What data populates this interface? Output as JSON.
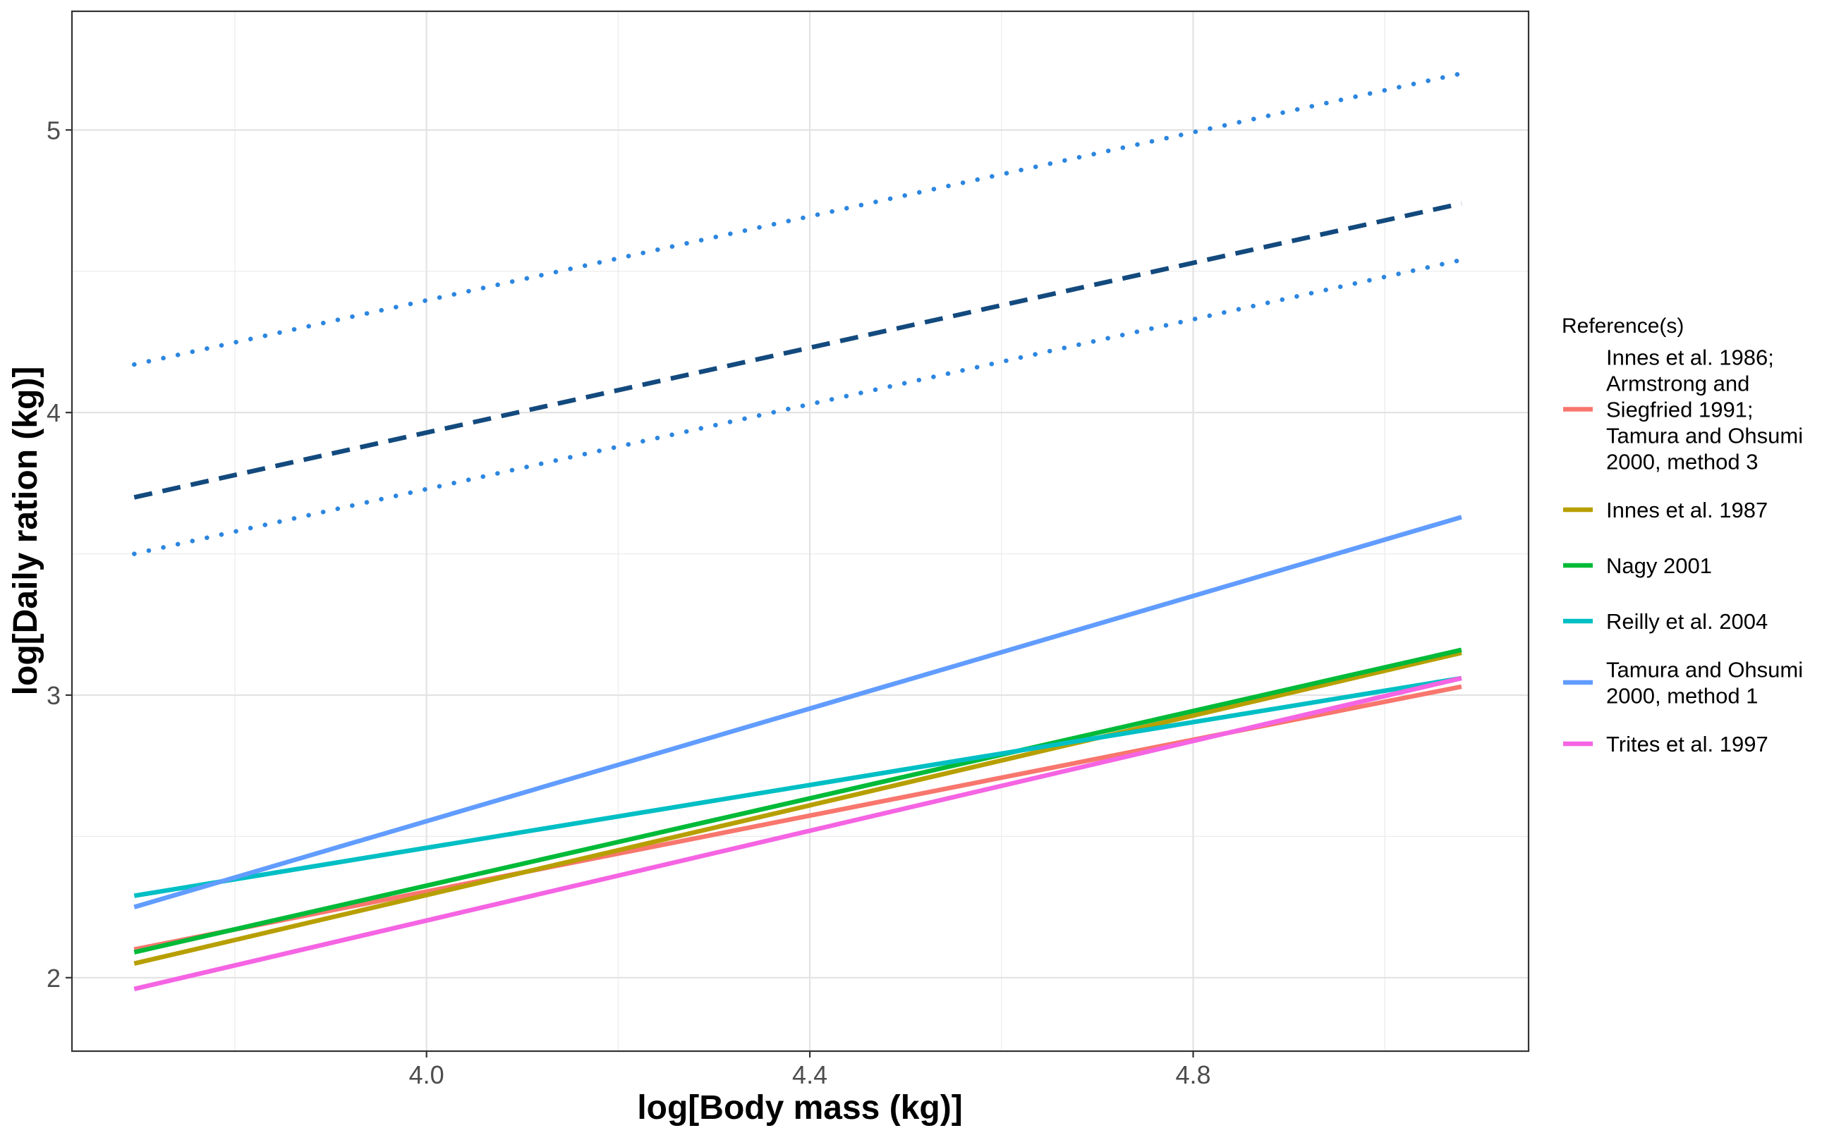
{
  "chart_data": {
    "type": "line",
    "xlabel": "log[Body mass (kg)]",
    "ylabel": "log[Daily ration (kg)]",
    "xlim": [
      3.63,
      5.15
    ],
    "ylim": [
      1.74,
      5.42
    ],
    "x_ticks": [
      4.0,
      4.4,
      4.8
    ],
    "x_tick_labels": [
      "4.0",
      "4.4",
      "4.8"
    ],
    "y_ticks": [
      2,
      3,
      4,
      5
    ],
    "y_tick_labels": [
      "2",
      "3",
      "4",
      "5"
    ],
    "x_minor_ticks": [
      3.8,
      4.2,
      4.6,
      5.0
    ],
    "y_minor_ticks": [
      2.5,
      3.5,
      4.5
    ],
    "grid": true,
    "legend_position": "right",
    "legend_title": "Reference(s)",
    "series": [
      {
        "name": "Innes et al. 1986; Armstrong and Siegfried 1991; Tamura and Ohsumi 2000, method 3",
        "legend_lines": [
          "Innes et al. 1986;",
          "Armstrong and",
          "Siegfried 1991;",
          "Tamura and Ohsumi",
          "2000, method 3"
        ],
        "color": "#F8766D",
        "x": [
          3.695,
          5.08
        ],
        "y": [
          2.1,
          3.03
        ]
      },
      {
        "name": "Innes et al. 1987",
        "legend_lines": [
          "Innes et al. 1987"
        ],
        "color": "#B79F00",
        "x": [
          3.695,
          5.08
        ],
        "y": [
          2.05,
          3.15
        ]
      },
      {
        "name": "Nagy 2001",
        "legend_lines": [
          "Nagy 2001"
        ],
        "color": "#00BA38",
        "x": [
          3.695,
          5.08
        ],
        "y": [
          2.09,
          3.16
        ]
      },
      {
        "name": "Reilly et al. 2004",
        "legend_lines": [
          "Reilly et al. 2004"
        ],
        "color": "#00BFC4",
        "x": [
          3.695,
          5.08
        ],
        "y": [
          2.29,
          3.06
        ]
      },
      {
        "name": "Tamura and Ohsumi 2000, method 1",
        "legend_lines": [
          "Tamura and Ohsumi",
          "2000, method 1"
        ],
        "color": "#619CFF",
        "x": [
          3.695,
          5.08
        ],
        "y": [
          2.25,
          3.63
        ]
      },
      {
        "name": "Trites et al. 1997",
        "legend_lines": [
          "Trites et al. 1997"
        ],
        "color": "#F564E3",
        "x": [
          3.695,
          5.08
        ],
        "y": [
          1.96,
          3.06
        ]
      }
    ],
    "extra_lines": [
      {
        "style": "dashed",
        "color": "#134A7E",
        "x": [
          3.695,
          5.08
        ],
        "y": [
          3.7,
          4.74
        ]
      },
      {
        "style": "dotted",
        "color": "#2C86E0",
        "x": [
          3.695,
          5.08
        ],
        "y": [
          4.17,
          5.2
        ]
      },
      {
        "style": "dotted",
        "color": "#2C86E0",
        "x": [
          3.695,
          5.08
        ],
        "y": [
          3.5,
          4.54
        ]
      }
    ]
  }
}
